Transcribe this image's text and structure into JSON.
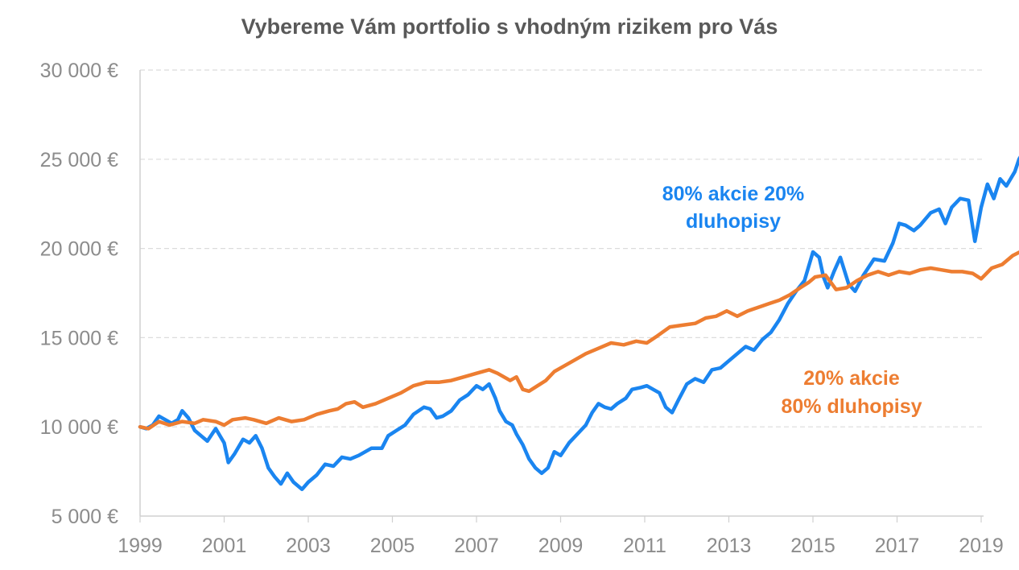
{
  "chart_data": {
    "type": "line",
    "title": "Vybereme Vám portfolio s vhodným rizikem pro Vás",
    "xlabel": "",
    "ylabel": "",
    "xlim": [
      1999,
      2019
    ],
    "ylim": [
      5000,
      30000
    ],
    "y_ticks": [
      5000,
      10000,
      15000,
      20000,
      25000,
      30000
    ],
    "y_tick_labels": [
      "5 000 €",
      "10 000 €",
      "15 000 €",
      "20 000 €",
      "25 000 €",
      "30 000 €"
    ],
    "x_ticks": [
      1999,
      2001,
      2003,
      2005,
      2007,
      2009,
      2011,
      2013,
      2015,
      2017,
      2019
    ],
    "x_tick_labels": [
      "1999",
      "2001",
      "2003",
      "2005",
      "2007",
      "2009",
      "2011",
      "2013",
      "2015",
      "2017",
      "2019"
    ],
    "grid": "horizontal dashed",
    "legend": "inline labels",
    "series": [
      {
        "name": "80% akcie 20% dluhopisy",
        "label_lines": [
          "80% akcie 20%",
          "dluhopisy"
        ],
        "color": "#1a85f0",
        "points": [
          [
            1999.0,
            10000
          ],
          [
            1999.15,
            9900
          ],
          [
            1999.3,
            10100
          ],
          [
            1999.45,
            10600
          ],
          [
            1999.6,
            10400
          ],
          [
            1999.75,
            10200
          ],
          [
            1999.9,
            10400
          ],
          [
            2000.0,
            10900
          ],
          [
            2000.15,
            10500
          ],
          [
            2000.3,
            9800
          ],
          [
            2000.45,
            9500
          ],
          [
            2000.6,
            9200
          ],
          [
            2000.8,
            9900
          ],
          [
            2001.0,
            9100
          ],
          [
            2001.1,
            8000
          ],
          [
            2001.25,
            8500
          ],
          [
            2001.45,
            9300
          ],
          [
            2001.6,
            9100
          ],
          [
            2001.75,
            9500
          ],
          [
            2001.9,
            8800
          ],
          [
            2002.05,
            7700
          ],
          [
            2002.2,
            7200
          ],
          [
            2002.35,
            6800
          ],
          [
            2002.5,
            7400
          ],
          [
            2002.65,
            6900
          ],
          [
            2002.85,
            6500
          ],
          [
            2003.0,
            6900
          ],
          [
            2003.2,
            7300
          ],
          [
            2003.4,
            7900
          ],
          [
            2003.6,
            7800
          ],
          [
            2003.8,
            8300
          ],
          [
            2004.0,
            8200
          ],
          [
            2004.2,
            8400
          ],
          [
            2004.5,
            8800
          ],
          [
            2004.75,
            8800
          ],
          [
            2004.9,
            9500
          ],
          [
            2005.1,
            9800
          ],
          [
            2005.3,
            10100
          ],
          [
            2005.5,
            10700
          ],
          [
            2005.75,
            11100
          ],
          [
            2005.9,
            11000
          ],
          [
            2006.05,
            10500
          ],
          [
            2006.2,
            10600
          ],
          [
            2006.4,
            10900
          ],
          [
            2006.6,
            11500
          ],
          [
            2006.8,
            11800
          ],
          [
            2007.0,
            12300
          ],
          [
            2007.15,
            12100
          ],
          [
            2007.3,
            12400
          ],
          [
            2007.45,
            11600
          ],
          [
            2007.55,
            10900
          ],
          [
            2007.7,
            10300
          ],
          [
            2007.85,
            10100
          ],
          [
            2007.95,
            9600
          ],
          [
            2008.1,
            9000
          ],
          [
            2008.25,
            8200
          ],
          [
            2008.4,
            7700
          ],
          [
            2008.55,
            7400
          ],
          [
            2008.7,
            7700
          ],
          [
            2008.85,
            8600
          ],
          [
            2009.0,
            8400
          ],
          [
            2009.2,
            9100
          ],
          [
            2009.4,
            9600
          ],
          [
            2009.6,
            10100
          ],
          [
            2009.75,
            10800
          ],
          [
            2009.9,
            11300
          ],
          [
            2010.05,
            11100
          ],
          [
            2010.2,
            11000
          ],
          [
            2010.35,
            11300
          ],
          [
            2010.55,
            11600
          ],
          [
            2010.7,
            12100
          ],
          [
            2010.9,
            12200
          ],
          [
            2011.05,
            12300
          ],
          [
            2011.2,
            12100
          ],
          [
            2011.35,
            11900
          ],
          [
            2011.5,
            11100
          ],
          [
            2011.65,
            10800
          ],
          [
            2011.8,
            11500
          ],
          [
            2012.0,
            12400
          ],
          [
            2012.2,
            12700
          ],
          [
            2012.4,
            12500
          ],
          [
            2012.6,
            13200
          ],
          [
            2012.8,
            13300
          ],
          [
            2013.0,
            13700
          ],
          [
            2013.2,
            14100
          ],
          [
            2013.4,
            14500
          ],
          [
            2013.6,
            14300
          ],
          [
            2013.8,
            14900
          ],
          [
            2014.0,
            15300
          ],
          [
            2014.2,
            16000
          ],
          [
            2014.4,
            16900
          ],
          [
            2014.6,
            17600
          ],
          [
            2014.8,
            18200
          ],
          [
            2015.0,
            19800
          ],
          [
            2015.15,
            19500
          ],
          [
            2015.25,
            18400
          ],
          [
            2015.35,
            17800
          ],
          [
            2015.5,
            18700
          ],
          [
            2015.65,
            19500
          ],
          [
            2015.85,
            18000
          ],
          [
            2016.0,
            17600
          ],
          [
            2016.2,
            18500
          ],
          [
            2016.45,
            19400
          ],
          [
            2016.7,
            19300
          ],
          [
            2016.9,
            20300
          ],
          [
            2017.05,
            21400
          ],
          [
            2017.2,
            21300
          ],
          [
            2017.4,
            21000
          ],
          [
            2017.55,
            21300
          ],
          [
            2017.8,
            22000
          ],
          [
            2018.0,
            22200
          ],
          [
            2018.15,
            21400
          ],
          [
            2018.3,
            22300
          ],
          [
            2018.5,
            22800
          ],
          [
            2018.7,
            22700
          ],
          [
            2018.85,
            20400
          ],
          [
            2019.0,
            22300
          ],
          [
            2019.15,
            23600
          ],
          [
            2019.3,
            22800
          ],
          [
            2019.45,
            23900
          ],
          [
            2019.6,
            23500
          ],
          [
            2019.8,
            24300
          ],
          [
            2019.9,
            25000
          ],
          [
            2020.0,
            25400
          ]
        ]
      },
      {
        "name": "20% akcie 80% dluhopisy",
        "label_lines": [
          "20% akcie",
          "80% dluhopisy"
        ],
        "color": "#ed7d31",
        "points": [
          [
            1999.0,
            10000
          ],
          [
            1999.2,
            9900
          ],
          [
            1999.45,
            10300
          ],
          [
            1999.7,
            10100
          ],
          [
            2000.0,
            10300
          ],
          [
            2000.3,
            10200
          ],
          [
            2000.5,
            10400
          ],
          [
            2000.8,
            10300
          ],
          [
            2001.0,
            10100
          ],
          [
            2001.2,
            10400
          ],
          [
            2001.5,
            10500
          ],
          [
            2001.7,
            10400
          ],
          [
            2002.0,
            10200
          ],
          [
            2002.3,
            10500
          ],
          [
            2002.6,
            10300
          ],
          [
            2002.9,
            10400
          ],
          [
            2003.2,
            10700
          ],
          [
            2003.5,
            10900
          ],
          [
            2003.7,
            11000
          ],
          [
            2003.9,
            11300
          ],
          [
            2004.1,
            11400
          ],
          [
            2004.3,
            11100
          ],
          [
            2004.6,
            11300
          ],
          [
            2004.9,
            11600
          ],
          [
            2005.2,
            11900
          ],
          [
            2005.5,
            12300
          ],
          [
            2005.8,
            12500
          ],
          [
            2006.1,
            12500
          ],
          [
            2006.4,
            12600
          ],
          [
            2006.7,
            12800
          ],
          [
            2007.0,
            13000
          ],
          [
            2007.3,
            13200
          ],
          [
            2007.5,
            13000
          ],
          [
            2007.8,
            12600
          ],
          [
            2007.95,
            12800
          ],
          [
            2008.1,
            12100
          ],
          [
            2008.25,
            12000
          ],
          [
            2008.45,
            12300
          ],
          [
            2008.65,
            12600
          ],
          [
            2008.85,
            13100
          ],
          [
            2009.0,
            13300
          ],
          [
            2009.3,
            13700
          ],
          [
            2009.6,
            14100
          ],
          [
            2009.9,
            14400
          ],
          [
            2010.2,
            14700
          ],
          [
            2010.5,
            14600
          ],
          [
            2010.8,
            14800
          ],
          [
            2011.05,
            14700
          ],
          [
            2011.3,
            15100
          ],
          [
            2011.6,
            15600
          ],
          [
            2011.9,
            15700
          ],
          [
            2012.2,
            15800
          ],
          [
            2012.45,
            16100
          ],
          [
            2012.7,
            16200
          ],
          [
            2012.95,
            16500
          ],
          [
            2013.2,
            16200
          ],
          [
            2013.45,
            16500
          ],
          [
            2013.7,
            16700
          ],
          [
            2013.95,
            16900
          ],
          [
            2014.2,
            17100
          ],
          [
            2014.45,
            17400
          ],
          [
            2014.7,
            17800
          ],
          [
            2014.9,
            18100
          ],
          [
            2015.05,
            18400
          ],
          [
            2015.3,
            18500
          ],
          [
            2015.55,
            17700
          ],
          [
            2015.8,
            17800
          ],
          [
            2016.05,
            18200
          ],
          [
            2016.3,
            18500
          ],
          [
            2016.55,
            18700
          ],
          [
            2016.8,
            18500
          ],
          [
            2017.05,
            18700
          ],
          [
            2017.3,
            18600
          ],
          [
            2017.55,
            18800
          ],
          [
            2017.8,
            18900
          ],
          [
            2018.05,
            18800
          ],
          [
            2018.3,
            18700
          ],
          [
            2018.55,
            18700
          ],
          [
            2018.8,
            18600
          ],
          [
            2019.0,
            18300
          ],
          [
            2019.25,
            18900
          ],
          [
            2019.5,
            19100
          ],
          [
            2019.75,
            19600
          ],
          [
            2020.0,
            19900
          ]
        ]
      }
    ]
  }
}
